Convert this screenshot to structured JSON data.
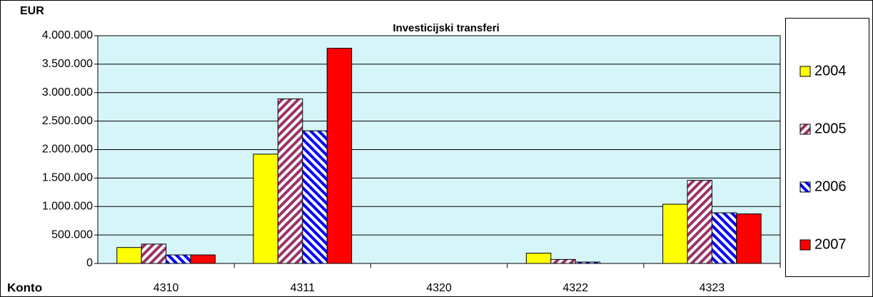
{
  "chart_data": {
    "type": "bar",
    "title": "Investicijski transferi",
    "y_label": "EUR",
    "x_label": "Konto",
    "categories": [
      "4310",
      "4311",
      "4320",
      "4322",
      "4323"
    ],
    "series": [
      {
        "name": "2004",
        "color": "#ffff00",
        "pattern": "solid",
        "values": [
          280000,
          1920000,
          0,
          180000,
          1040000
        ]
      },
      {
        "name": "2005",
        "color": "#993366",
        "pattern": "stripes-down",
        "values": [
          340000,
          2890000,
          0,
          70000,
          1460000
        ]
      },
      {
        "name": "2006",
        "color": "#0000ff",
        "pattern": "stripes-up",
        "values": [
          150000,
          2330000,
          0,
          25000,
          890000
        ]
      },
      {
        "name": "2007",
        "color": "#ff0000",
        "pattern": "solid",
        "values": [
          150000,
          3780000,
          0,
          0,
          870000
        ]
      }
    ],
    "ylim": [
      0,
      4000000
    ],
    "yticks": [
      0,
      {
        "value": 500000,
        "label": "500.000"
      },
      {
        "value": 1000000,
        "label": "1.000.000"
      },
      {
        "value": 1500000,
        "label": "1.500.000"
      },
      {
        "value": 2000000,
        "label": "2.000.000"
      },
      {
        "value": 2500000,
        "label": "2.500.000"
      },
      {
        "value": 3000000,
        "label": "3.000.000"
      },
      {
        "value": 3500000,
        "label": "3.500.000"
      },
      {
        "value": 4000000,
        "label": "4.000.000"
      }
    ],
    "grid": true,
    "legend": "right"
  }
}
